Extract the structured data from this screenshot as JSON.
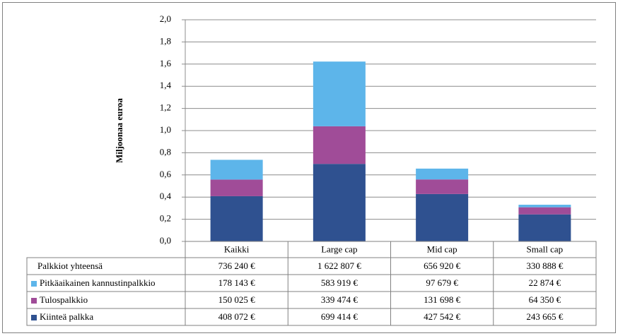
{
  "chart_data": {
    "type": "stacked_bar",
    "y_label": "Miljoonaa euroa",
    "categories": [
      "Kaikki",
      "Large cap",
      "Mid cap",
      "Small cap"
    ],
    "series": [
      {
        "name": "Kiinteä palkka",
        "color": "#2f5190",
        "values": [
          0.408072,
          0.699414,
          0.427542,
          0.243665
        ],
        "value_labels": [
          "408 072 €",
          "699 414 €",
          "427 542 €",
          "243 665 €"
        ]
      },
      {
        "name": "Tulospalkkio",
        "color": "#a04c98",
        "values": [
          0.150025,
          0.339474,
          0.131698,
          0.06435
        ],
        "value_labels": [
          "150 025 €",
          "339 474 €",
          "131 698 €",
          "64 350 €"
        ]
      },
      {
        "name": "Pitkäaikainen kannustinpalkkio",
        "color": "#5db5ea",
        "values": [
          0.178143,
          0.583919,
          0.097679,
          0.022874
        ],
        "value_labels": [
          "178 143 €",
          "583 919 €",
          "97 679 €",
          "22 874 €"
        ]
      }
    ],
    "totals": {
      "name": "Palkkiot yhteensä",
      "values": [
        0.73624,
        1.622807,
        0.65692,
        0.330888
      ],
      "value_labels": [
        "736 240 €",
        "1 622 807 €",
        "656 920 €",
        "330 888 €"
      ]
    },
    "ylim": [
      0,
      2
    ],
    "yticks": [
      {
        "value": 0,
        "label": "0,0"
      },
      {
        "value": 0.2,
        "label": "0,2"
      },
      {
        "value": 0.4,
        "label": "0,4"
      },
      {
        "value": 0.6,
        "label": "0,6"
      },
      {
        "value": 0.8,
        "label": "0,8"
      },
      {
        "value": 1,
        "label": "1,0"
      },
      {
        "value": 1.2,
        "label": "1,2"
      },
      {
        "value": 1.4,
        "label": "1,4"
      },
      {
        "value": 1.6,
        "label": "1,6"
      },
      {
        "value": 1.8,
        "label": "1,8"
      },
      {
        "value": 2,
        "label": "2,0"
      }
    ],
    "grid": true
  }
}
